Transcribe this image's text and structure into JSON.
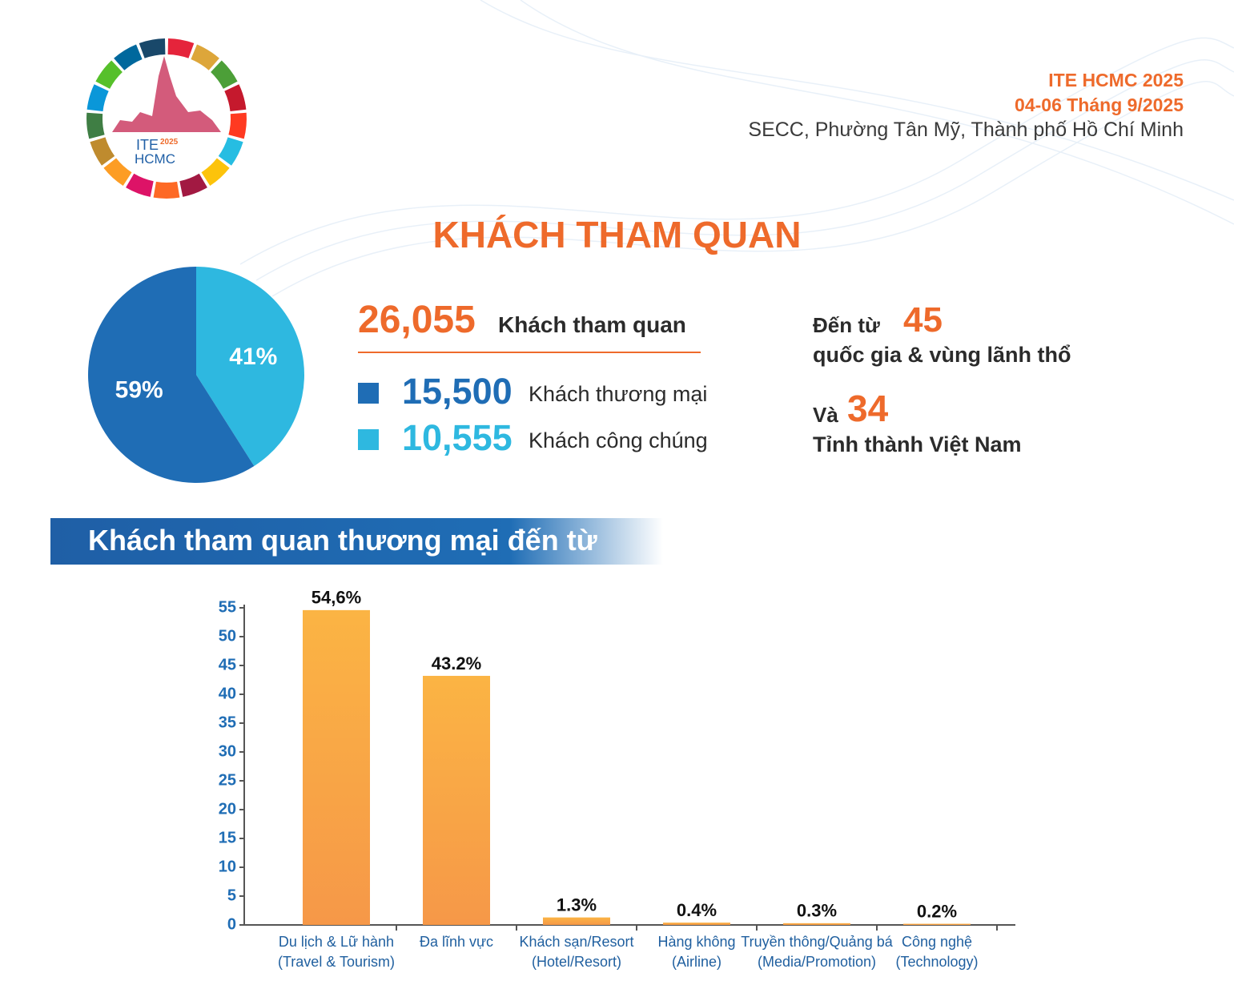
{
  "header": {
    "event": "ITE HCMC 2025",
    "dates": "04-06 Tháng 9/2025",
    "venue": "SECC, Phường Tân Mỹ, Thành phố Hồ Chí Minh"
  },
  "logo": {
    "line1": "ITE",
    "line2": "HCMC",
    "year": "2025"
  },
  "section_title": "KHÁCH THAM QUAN",
  "stats": {
    "total": "26,055",
    "total_label": "Khách tham quan",
    "items": [
      {
        "value": "15,500",
        "label": "Khách thương mại",
        "color": "#1f6db5"
      },
      {
        "value": "10,555",
        "label": "Khách công chúng",
        "color": "#2eb8e0"
      }
    ],
    "from_label": "Đến từ",
    "countries": "45",
    "countries_label": "quốc gia & vùng lãnh thổ",
    "and_label": "Và",
    "provinces": "34",
    "provinces_label": "Tỉnh thành Việt Nam"
  },
  "bar_section_title": "Khách tham quan thương mại đến từ",
  "chart_data": [
    {
      "type": "pie",
      "values": [
        41,
        59
      ],
      "value_labels": [
        "41%",
        "59%"
      ],
      "colors": [
        "#2eb8e0",
        "#1f6db5"
      ]
    },
    {
      "type": "bar",
      "categories": [
        "Du lịch & Lữ hành\n(Travel & Tourism)",
        "Đa lĩnh vực",
        "Khách sạn/Resort\n(Hotel/Resort)",
        "Hàng không\n(Airline)",
        "Truyền thông/Quảng bá\n(Media/Promotion)",
        "Công nghệ\n(Technology)"
      ],
      "values": [
        54.6,
        43.2,
        1.3,
        0.4,
        0.3,
        0.2
      ],
      "value_labels": [
        "54,6%",
        "43.2%",
        "1.3%",
        "0.4%",
        "0.3%",
        "0.2%"
      ],
      "color": "#f9a443",
      "ylim": [
        0,
        55
      ],
      "yticks": [
        0,
        5,
        10,
        15,
        20,
        25,
        30,
        35,
        40,
        45,
        50,
        55
      ]
    }
  ]
}
